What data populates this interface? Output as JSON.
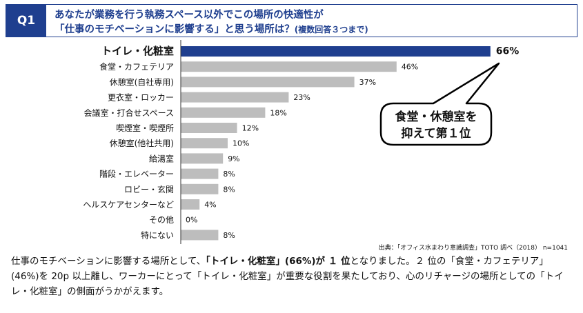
{
  "header": {
    "badge": "Q1",
    "line1": "あなたが業務を行う執務スペース以外でこの場所の快適性が",
    "line2": "「仕事のモチベーションに影響する」と思う場所は？",
    "note": "(複数回答３つまで)"
  },
  "chart_data": {
    "type": "bar",
    "orientation": "horizontal",
    "categories": [
      "トイレ・化粧室",
      "食堂・カフェテリア",
      "休憩室(自社専用)",
      "更衣室・ロッカー",
      "会議室・打合せスペース",
      "喫煙室・喫煙所",
      "休憩室(他社共用)",
      "給湯室",
      "階段・エレベーター",
      "ロビー・玄関",
      "ヘルスケアセンターなど",
      "その他",
      "特にない"
    ],
    "values": [
      66,
      46,
      37,
      23,
      18,
      12,
      10,
      9,
      8,
      8,
      4,
      0,
      8
    ],
    "value_labels": [
      "66%",
      "46%",
      "37%",
      "23%",
      "18%",
      "12%",
      "10%",
      "9%",
      "8%",
      "8%",
      "4%",
      "0%",
      "8%"
    ],
    "unit": "%",
    "xlim": [
      0,
      100
    ],
    "highlight_color": "#1f3f8f",
    "bar_color": "#bdbdbd",
    "annotation": {
      "line1": "食堂・休憩室を",
      "line2": "抑えて第１位"
    }
  },
  "source": "出典：「オフィス水まわり意識調査」TOTO 調べ（2018） n=1041",
  "summary": {
    "p1": "仕事のモチベーションに影響する場所として、",
    "bold": "「トイレ・化粧室」(66%)が １ 位",
    "p2": "となりました。２ 位の「食堂・カフェテリア」(46%)を 20p 以上離し、ワーカーにとって「トイレ・化粧室」が重要な役割を果たしており、心のリチャージの場所としての「トイレ・化粧室」の側面がうかがえます。"
  }
}
